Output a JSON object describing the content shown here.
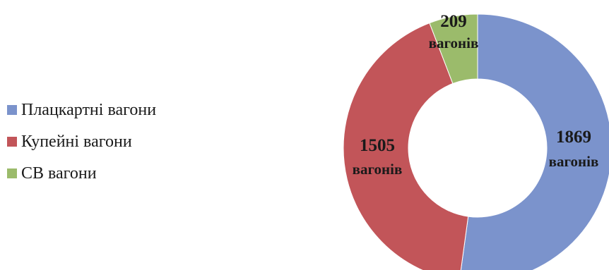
{
  "chart_data": {
    "type": "pie",
    "variant": "donut",
    "categories": [
      "Плацкартні вагони",
      "Купейні вагони",
      "СВ вагони"
    ],
    "values": [
      1869,
      1505,
      209
    ],
    "colors": [
      "#7b93cc",
      "#c25559",
      "#9bbb6b"
    ],
    "data_labels": [
      {
        "value": "1869",
        "unit": "вагонів"
      },
      {
        "value": "1505",
        "unit": "вагонів"
      },
      {
        "value": "209",
        "unit": "вагонів"
      }
    ],
    "legend_position": "left"
  }
}
